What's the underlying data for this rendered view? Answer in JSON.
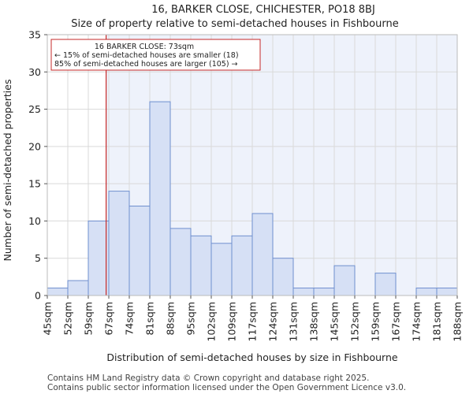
{
  "chart_data": {
    "type": "bar",
    "title": "16, BARKER CLOSE, CHICHESTER, PO18 8BJ",
    "subtitle": "Size of property relative to semi-detached houses in Fishbourne",
    "xlabel": "Distribution of semi-detached houses by size in Fishbourne",
    "ylabel": "Number of semi-detached properties",
    "ylim": [
      0,
      35
    ],
    "yticks": [
      0,
      5,
      10,
      15,
      20,
      25,
      30,
      35
    ],
    "bin_edges": [
      "45sqm",
      "52sqm",
      "59sqm",
      "67sqm",
      "74sqm",
      "81sqm",
      "88sqm",
      "95sqm",
      "102sqm",
      "109sqm",
      "117sqm",
      "124sqm",
      "131sqm",
      "138sqm",
      "145sqm",
      "152sqm",
      "159sqm",
      "167sqm",
      "174sqm",
      "181sqm",
      "188sqm"
    ],
    "values": [
      1,
      2,
      10,
      14,
      12,
      26,
      9,
      8,
      7,
      8,
      11,
      5,
      1,
      1,
      4,
      0,
      3,
      0,
      1,
      1
    ],
    "bar_color": "#d6e0f5",
    "bar_edge_color": "#6f8fce",
    "highlight_bg": "#eef2fb",
    "grid": true,
    "property_line": {
      "value": 73,
      "color": "#c62828",
      "bin_position": 2.87
    },
    "annotation": {
      "line1": "16 BARKER CLOSE: 73sqm",
      "line2": "← 15% of semi-detached houses are smaller (18)",
      "line3": "85% of semi-detached houses are larger (105) →",
      "border_color": "#c62828"
    }
  },
  "footer": {
    "line1": "Contains HM Land Registry data © Crown copyright and database right 2025.",
    "line2": "Contains public sector information licensed under the Open Government Licence v3.0."
  }
}
